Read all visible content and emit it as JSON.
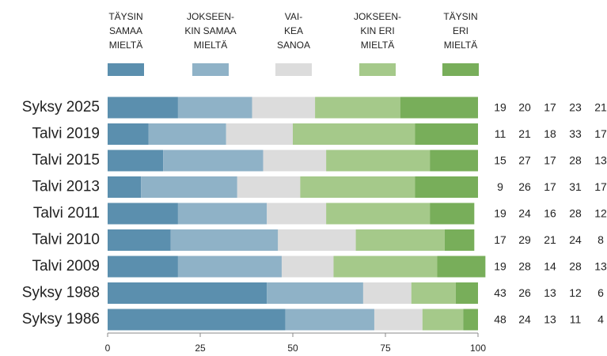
{
  "chart_data": {
    "type": "stacked-bar-horizontal",
    "categories": [
      "Syksy 2025",
      "Talvi 2019",
      "Talvi 2015",
      "Talvi 2013",
      "Talvi 2011",
      "Talvi 2010",
      "Talvi 2009",
      "Syksy 1988",
      "Syksy 1986"
    ],
    "series": [
      {
        "name": "TÄYSIN\nSAMAA\nMIELTÄ",
        "color": "#5b8fae",
        "values": [
          19,
          11,
          15,
          9,
          19,
          17,
          19,
          43,
          48
        ]
      },
      {
        "name": "JOKSEEN-\nKIN SAMAA\nMIELTÄ",
        "color": "#8fb2c7",
        "values": [
          20,
          21,
          27,
          26,
          24,
          29,
          28,
          26,
          24
        ]
      },
      {
        "name": "VAI-\nKEA\nSANOA",
        "color": "#dcdcdc",
        "values": [
          17,
          18,
          17,
          17,
          16,
          21,
          14,
          13,
          13
        ]
      },
      {
        "name": "JOKSEEN-\nKIN ERI\nMIELTÄ",
        "color": "#a5c98a",
        "values": [
          23,
          33,
          28,
          31,
          28,
          24,
          28,
          12,
          11
        ]
      },
      {
        "name": "TÄYSIN\nERI\nMIELTÄ",
        "color": "#78ae5a",
        "values": [
          21,
          17,
          13,
          17,
          12,
          8,
          13,
          6,
          4
        ]
      }
    ],
    "xlim": [
      0,
      100
    ],
    "xticks": [
      0,
      25,
      50,
      75,
      100
    ],
    "legend": "top"
  }
}
